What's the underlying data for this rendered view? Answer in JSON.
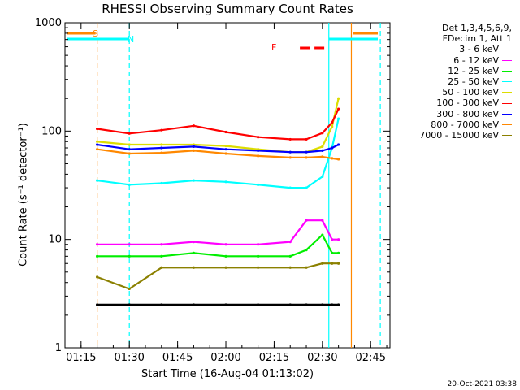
{
  "title": "RHESSI Observing Summary Count Rates",
  "xlabel": "Start Time (16-Aug-04 01:13:02)",
  "ylabel": "Count Rate (s⁻¹ detector⁻¹)",
  "footer": "20-Oct-2021 03:38",
  "legend": {
    "header1": "Det 1,3,4,5,6,9,",
    "header2": "FDecim 1, Att 1",
    "items": [
      {
        "label": "3 - 6 keV",
        "color": "#000000"
      },
      {
        "label": "6 - 12 keV",
        "color": "#ff00ff"
      },
      {
        "label": "12 - 25 keV",
        "color": "#00ee00"
      },
      {
        "label": "25 - 50 keV",
        "color": "#00ffff"
      },
      {
        "label": "50 - 100 keV",
        "color": "#dddd00"
      },
      {
        "label": "100 - 300 keV",
        "color": "#ff0000"
      },
      {
        "label": "300 - 800 keV",
        "color": "#0000ff"
      },
      {
        "label": "800 - 7000 keV",
        "color": "#ff8800"
      },
      {
        "label": "7000 - 15000 keV",
        "color": "#8b8000"
      }
    ]
  },
  "flags": {
    "s": "S",
    "n": "N",
    "f": "F"
  },
  "chart_data": {
    "type": "line",
    "title": "RHESSI Observing Summary Count Rates",
    "xlabel": "Start Time (16-Aug-04 01:13:02)",
    "ylabel": "Count Rate (s⁻¹ detector⁻¹)",
    "xlim": [
      "01:10",
      "02:51"
    ],
    "x_ticks": [
      "01:15",
      "01:30",
      "01:45",
      "02:00",
      "02:15",
      "02:30",
      "02:45"
    ],
    "y_scale": "log",
    "ylim": [
      1,
      1000
    ],
    "y_ticks": [
      "1",
      "10",
      "100",
      "1000"
    ],
    "x": [
      "01:20",
      "01:30",
      "01:40",
      "01:50",
      "02:00",
      "02:10",
      "02:20",
      "02:25",
      "02:30",
      "02:33",
      "02:35"
    ],
    "series": [
      {
        "name": "3 - 6 keV",
        "color": "#000000",
        "values": [
          2.5,
          2.5,
          2.5,
          2.5,
          2.5,
          2.5,
          2.5,
          2.5,
          2.5,
          2.5,
          2.5
        ]
      },
      {
        "name": "6 - 12 keV",
        "color": "#ff00ff",
        "values": [
          9,
          9,
          9,
          9.5,
          9,
          9,
          9.5,
          15,
          15,
          10,
          10
        ]
      },
      {
        "name": "12 - 25 keV",
        "color": "#00ee00",
        "values": [
          7,
          7,
          7,
          7.5,
          7,
          7,
          7,
          8,
          11,
          7.5,
          7.5
        ]
      },
      {
        "name": "25 - 50 keV",
        "color": "#00ffff",
        "values": [
          35,
          32,
          33,
          35,
          34,
          32,
          30,
          30,
          38,
          70,
          130
        ]
      },
      {
        "name": "50 - 100 keV",
        "color": "#dddd00",
        "values": [
          80,
          75,
          75,
          75,
          73,
          68,
          64,
          64,
          72,
          110,
          200
        ]
      },
      {
        "name": "100 - 300 keV",
        "color": "#ff0000",
        "values": [
          105,
          95,
          102,
          112,
          98,
          88,
          84,
          84,
          96,
          120,
          160
        ]
      },
      {
        "name": "300 - 800 keV",
        "color": "#0000ff",
        "values": [
          75,
          68,
          70,
          72,
          68,
          66,
          64,
          64,
          66,
          70,
          75
        ]
      },
      {
        "name": "800 - 7000 keV",
        "color": "#ff8800",
        "values": [
          68,
          62,
          63,
          66,
          62,
          59,
          57,
          57,
          58,
          56,
          55
        ]
      },
      {
        "name": "7000 - 15000 keV",
        "color": "#8b8000",
        "values": [
          4.5,
          3.5,
          5.5,
          5.5,
          5.5,
          5.5,
          5.5,
          5.5,
          6,
          6,
          6
        ]
      }
    ],
    "markers": [
      {
        "label": "S",
        "time": "01:20",
        "style": "dashed",
        "color": "#ff8800"
      },
      {
        "label": "N",
        "time": "01:30",
        "style": "dashed",
        "color": "#00ffff"
      },
      {
        "label": "",
        "time": "02:32",
        "style": "solid",
        "color": "#00ffff"
      },
      {
        "label": "",
        "time": "02:39",
        "style": "solid",
        "color": "#ff8800"
      },
      {
        "label": "",
        "time": "02:48",
        "style": "dashed",
        "color": "#00ffff"
      }
    ],
    "flare_interval": {
      "label": "F",
      "start": "02:23",
      "end": "02:32",
      "color": "#ff0000"
    },
    "grid": false
  }
}
